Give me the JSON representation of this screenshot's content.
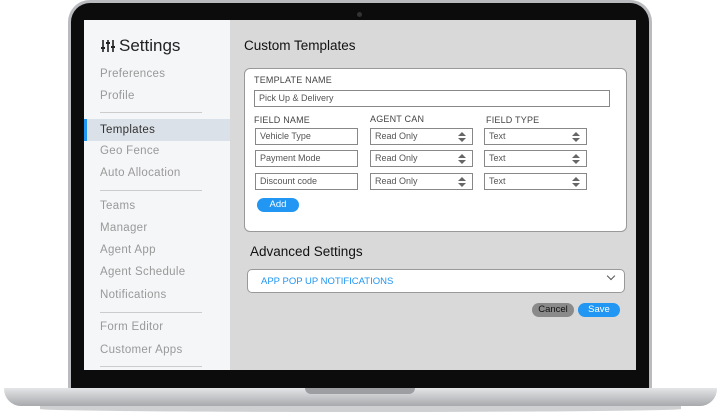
{
  "sidebar": {
    "title": "Settings",
    "items": [
      "Preferences",
      "Profile",
      "Templates",
      "Geo Fence",
      "Auto Allocation",
      "Teams",
      "Manager",
      "Agent App",
      "Agent Schedule",
      "Notifications",
      "Form Editor",
      "Customer Apps"
    ],
    "active": "Templates"
  },
  "main": {
    "heading": "Custom Templates",
    "template_name_label": "TEMPLATE NAME",
    "template_name": "Pick Up & Delivery",
    "columns": [
      "FIELD NAME",
      "AGENT CAN",
      "FIELD TYPE"
    ],
    "rows": [
      [
        "Vehicle Type",
        "Read Only",
        "Text"
      ],
      [
        "Payment Mode",
        "Read Only",
        "Text"
      ],
      [
        "Discount code",
        "Read Only",
        "Text"
      ]
    ],
    "add_label": "Add",
    "advanced_heading": "Advanced Settings",
    "advanced_item": "APP POP UP NOTIFICATIONS",
    "cancel_label": "Cancel",
    "save_label": "Save"
  },
  "colors": {
    "accent": "#2196f3",
    "cancel": "#8a8a8a"
  }
}
